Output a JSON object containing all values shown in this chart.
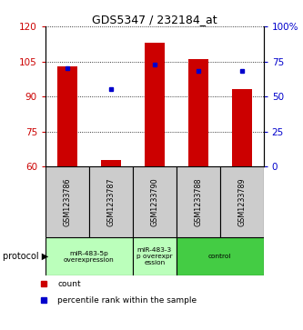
{
  "title": "GDS5347 / 232184_at",
  "samples": [
    "GSM1233786",
    "GSM1233787",
    "GSM1233790",
    "GSM1233788",
    "GSM1233789"
  ],
  "bar_values": [
    103.0,
    63.0,
    113.0,
    106.0,
    93.0
  ],
  "percentile_values": [
    70,
    55,
    73,
    68,
    68
  ],
  "ylim_left": [
    60,
    120
  ],
  "ylim_right": [
    0,
    100
  ],
  "yticks_left": [
    60,
    75,
    90,
    105,
    120
  ],
  "yticks_right": [
    0,
    25,
    50,
    75,
    100
  ],
  "ytick_labels_right": [
    "0",
    "25",
    "50",
    "75",
    "100%"
  ],
  "bar_color": "#cc0000",
  "marker_color": "#0000cc",
  "protocol_groups": [
    {
      "label": "miR-483-5p\noverexpression",
      "start": 0,
      "end": 2,
      "color": "#bbffbb"
    },
    {
      "label": "miR-483-3\np overexpr\nession",
      "start": 2,
      "end": 3,
      "color": "#bbffbb"
    },
    {
      "label": "control",
      "start": 3,
      "end": 5,
      "color": "#44cc44"
    }
  ],
  "legend_count_color": "#cc0000",
  "legend_percentile_color": "#0000cc",
  "protocol_label": "protocol",
  "background_color": "#ffffff",
  "plot_bg_color": "#ffffff",
  "sample_cell_color": "#cccccc"
}
